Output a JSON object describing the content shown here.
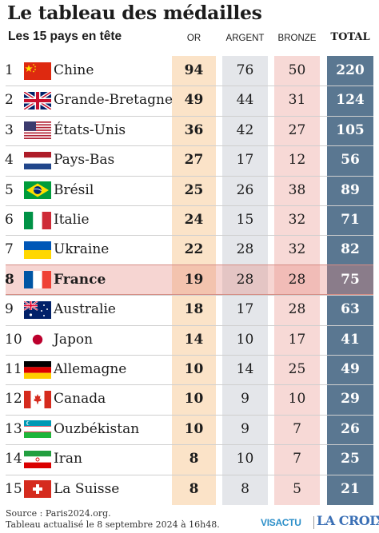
{
  "header": {
    "title": "Le tableau des médailles",
    "subtitle": "Les 15 pays en tête",
    "col_or": "OR",
    "col_argent": "ARGENT",
    "col_bronze": "BRONZE",
    "col_total": "TOTAL"
  },
  "colors": {
    "or_bg": "#fbe3c8",
    "argent_bg": "#e4e6ea",
    "bronze_bg": "#f7d9d6",
    "total_bg": "#5a7791",
    "highlight": "#e4887e"
  },
  "chart_data": {
    "type": "table",
    "title": "Le tableau des médailles",
    "subtitle": "Les 15 pays en tête",
    "columns": [
      "OR",
      "ARGENT",
      "BRONZE",
      "TOTAL"
    ],
    "highlighted_country": "France",
    "rows": [
      {
        "rank": "1",
        "country": "Chine",
        "flag": "china-flag-icon",
        "or": "94",
        "argent": "76",
        "bronze": "50",
        "total": "220"
      },
      {
        "rank": "2",
        "country": "Grande-Bretagne",
        "flag": "uk-flag-icon",
        "or": "49",
        "argent": "44",
        "bronze": "31",
        "total": "124"
      },
      {
        "rank": "3",
        "country": "États-Unis",
        "flag": "usa-flag-icon",
        "or": "36",
        "argent": "42",
        "bronze": "27",
        "total": "105"
      },
      {
        "rank": "4",
        "country": "Pays-Bas",
        "flag": "netherlands-flag-icon",
        "or": "27",
        "argent": "17",
        "bronze": "12",
        "total": "56"
      },
      {
        "rank": "5",
        "country": "Brésil",
        "flag": "brazil-flag-icon",
        "or": "25",
        "argent": "26",
        "bronze": "38",
        "total": "89"
      },
      {
        "rank": "6",
        "country": "Italie",
        "flag": "italy-flag-icon",
        "or": "24",
        "argent": "15",
        "bronze": "32",
        "total": "71"
      },
      {
        "rank": "7",
        "country": "Ukraine",
        "flag": "ukraine-flag-icon",
        "or": "22",
        "argent": "28",
        "bronze": "32",
        "total": "82"
      },
      {
        "rank": "8",
        "country": "France",
        "flag": "france-flag-icon",
        "or": "19",
        "argent": "28",
        "bronze": "28",
        "total": "75"
      },
      {
        "rank": "9",
        "country": "Australie",
        "flag": "australia-flag-icon",
        "or": "18",
        "argent": "17",
        "bronze": "28",
        "total": "63"
      },
      {
        "rank": "10",
        "country": "Japon",
        "flag": "japan-flag-icon",
        "or": "14",
        "argent": "10",
        "bronze": "17",
        "total": "41"
      },
      {
        "rank": "11",
        "country": "Allemagne",
        "flag": "germany-flag-icon",
        "or": "10",
        "argent": "14",
        "bronze": "25",
        "total": "49"
      },
      {
        "rank": "12",
        "country": "Canada",
        "flag": "canada-flag-icon",
        "or": "10",
        "argent": "9",
        "bronze": "10",
        "total": "29"
      },
      {
        "rank": "13",
        "country": "Ouzbékistan",
        "flag": "uzbekistan-flag-icon",
        "or": "10",
        "argent": "9",
        "bronze": "7",
        "total": "26"
      },
      {
        "rank": "14",
        "country": "Iran",
        "flag": "iran-flag-icon",
        "or": "8",
        "argent": "10",
        "bronze": "7",
        "total": "25"
      },
      {
        "rank": "15",
        "country": "La Suisse",
        "flag": "switzerland-flag-icon",
        "or": "8",
        "argent": "8",
        "bronze": "5",
        "total": "21"
      }
    ]
  },
  "footer": {
    "source_line1": "Source : Paris2024.org.",
    "source_line2": "Tableau actualisé le 8 septembre 2024 à 16h48.",
    "logo_visactu": "VISACTU",
    "logo_lacroix": "LA CROIX"
  }
}
